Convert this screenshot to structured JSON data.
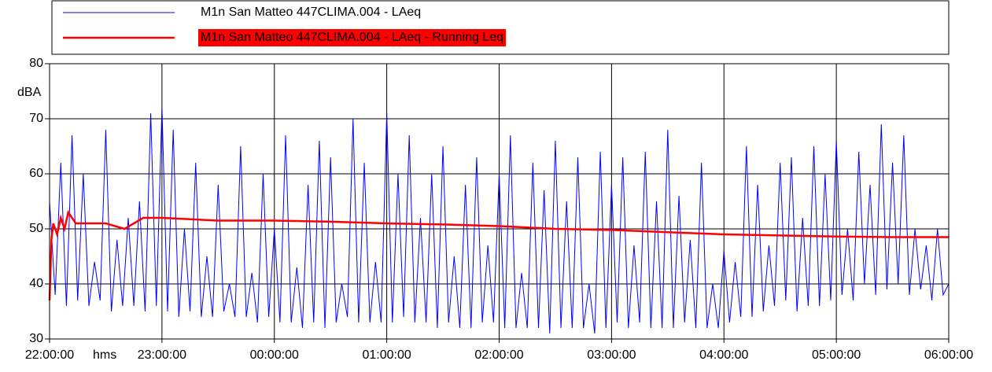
{
  "chart_data": {
    "type": "line",
    "xlabel": "hms",
    "ylabel": "dBA",
    "xlim": [
      0,
      480
    ],
    "ylim": [
      30,
      80
    ],
    "yticks": [
      30,
      40,
      50,
      60,
      70,
      80
    ],
    "xticks": [
      {
        "value": 0,
        "label": "22:00:00"
      },
      {
        "value": 60,
        "label": "23:00:00"
      },
      {
        "value": 120,
        "label": "00:00:00"
      },
      {
        "value": 180,
        "label": "01:00:00"
      },
      {
        "value": 240,
        "label": "02:00:00"
      },
      {
        "value": 300,
        "label": "03:00:00"
      },
      {
        "value": 360,
        "label": "04:00:00"
      },
      {
        "value": 420,
        "label": "05:00:00"
      },
      {
        "value": 480,
        "label": "06:00:00"
      }
    ],
    "grid": true,
    "series": [
      {
        "name": "M1n San Matteo 447CLIMA.004 - LAeq",
        "color": "#0000ff",
        "x": [
          0,
          3,
          6,
          9,
          12,
          15,
          18,
          21,
          24,
          27,
          30,
          33,
          36,
          39,
          42,
          45,
          48,
          51,
          54,
          57,
          60,
          63,
          66,
          69,
          72,
          75,
          78,
          81,
          84,
          87,
          90,
          93,
          96,
          99,
          102,
          105,
          108,
          111,
          114,
          117,
          120,
          123,
          126,
          129,
          132,
          135,
          138,
          141,
          144,
          147,
          150,
          153,
          156,
          159,
          162,
          165,
          168,
          171,
          174,
          177,
          180,
          183,
          186,
          189,
          192,
          195,
          198,
          201,
          204,
          207,
          210,
          213,
          216,
          219,
          222,
          225,
          228,
          231,
          234,
          237,
          240,
          243,
          246,
          249,
          252,
          255,
          258,
          261,
          264,
          267,
          270,
          273,
          276,
          279,
          282,
          285,
          288,
          291,
          294,
          297,
          300,
          303,
          306,
          309,
          312,
          315,
          318,
          321,
          324,
          327,
          330,
          333,
          336,
          339,
          342,
          345,
          348,
          351,
          354,
          357,
          360,
          363,
          366,
          369,
          372,
          375,
          378,
          381,
          384,
          387,
          390,
          393,
          396,
          399,
          402,
          405,
          408,
          411,
          414,
          417,
          420,
          423,
          426,
          429,
          432,
          435,
          438,
          441,
          444,
          447,
          450,
          453,
          456,
          459,
          462,
          465,
          468,
          471,
          474,
          477,
          480
        ],
        "values": [
          55,
          38,
          62,
          36,
          67,
          37,
          60,
          36,
          44,
          37,
          68,
          35,
          48,
          36,
          52,
          36,
          55,
          35,
          71,
          36,
          72,
          35,
          68,
          34,
          50,
          35,
          62,
          34,
          45,
          34,
          58,
          35,
          40,
          34,
          65,
          34,
          42,
          33,
          60,
          34,
          50,
          33,
          67,
          33,
          43,
          32,
          58,
          33,
          66,
          32,
          63,
          33,
          40,
          34,
          70,
          33,
          62,
          33,
          44,
          33,
          71,
          33,
          60,
          34,
          67,
          33,
          52,
          33,
          60,
          32,
          65,
          33,
          45,
          32,
          58,
          32,
          63,
          33,
          47,
          33,
          60,
          32,
          67,
          32,
          42,
          32,
          62,
          32,
          57,
          31,
          66,
          32,
          55,
          32,
          63,
          32,
          40,
          31,
          64,
          32,
          58,
          33,
          63,
          32,
          47,
          33,
          64,
          32,
          55,
          32,
          68,
          32,
          56,
          33,
          48,
          32,
          62,
          32,
          40,
          32,
          46,
          33,
          44,
          34,
          65,
          34,
          58,
          35,
          47,
          36,
          62,
          37,
          63,
          35,
          52,
          36,
          65,
          36,
          60,
          37,
          66,
          38,
          50,
          37,
          64,
          40,
          58,
          38,
          69,
          39,
          62,
          40,
          67,
          38,
          50,
          39,
          47,
          37,
          50,
          38,
          40
        ]
      },
      {
        "name": "M1n San Matteo 447CLIMA.004 - LAeq - Running Leq",
        "color": "#ff0000",
        "x": [
          0,
          1,
          2,
          4,
          6,
          8,
          10,
          14,
          20,
          30,
          40,
          50,
          60,
          90,
          120,
          150,
          180,
          210,
          240,
          270,
          300,
          330,
          360,
          390,
          420,
          450,
          480
        ],
        "values": [
          37,
          48,
          51,
          49,
          52,
          50,
          53,
          51,
          51,
          51,
          50,
          52,
          52,
          51.5,
          51.5,
          51.3,
          51,
          50.8,
          50.5,
          50,
          49.8,
          49.4,
          49,
          48.8,
          48.6,
          48.5,
          48.5
        ]
      }
    ]
  }
}
